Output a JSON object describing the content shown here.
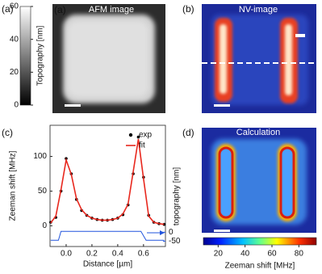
{
  "panels": {
    "a": {
      "label": "(a)",
      "inner_label": "(a)",
      "title": "AFM image"
    },
    "b": {
      "label": "(b)",
      "title": "NV-image"
    },
    "c": {
      "label": "(c)"
    },
    "d": {
      "label": "(d)",
      "title": "Calculation"
    }
  },
  "chart_data": [
    {
      "type": "colorbar",
      "orientation": "vertical",
      "colormap": "gray",
      "axis_label": "Topography [nm]",
      "ylim": [
        0,
        60
      ],
      "yticks": [
        0,
        20,
        40,
        60
      ]
    },
    {
      "type": "line",
      "xlabel": "Distance [µm]",
      "ylabel": "Zeeman shift [MHz]",
      "y2label": "topography [nm]",
      "x": [
        -0.12,
        -0.08,
        -0.04,
        0.0,
        0.04,
        0.08,
        0.12,
        0.16,
        0.2,
        0.24,
        0.28,
        0.32,
        0.36,
        0.4,
        0.44,
        0.48,
        0.52,
        0.56,
        0.6,
        0.64,
        0.68,
        0.72,
        0.76
      ],
      "xlim": [
        -0.125,
        0.77
      ],
      "xticks": [
        {
          "value": 0,
          "label": "0.0"
        },
        0.2,
        0.4,
        0.6
      ],
      "ylim": [
        -30,
        145
      ],
      "yticks": [
        0,
        50,
        100
      ],
      "y2lim": [
        -80,
        600
      ],
      "y2ticks": [
        0,
        -50
      ],
      "series": [
        {
          "name": "exp",
          "color": "#000000",
          "style": "markers",
          "values": [
            5,
            12,
            50,
            97,
            75,
            38,
            22,
            15,
            11,
            9,
            8,
            8,
            9,
            11,
            16,
            30,
            75,
            128,
            70,
            15,
            5,
            3,
            2
          ]
        },
        {
          "name": "fit",
          "color": "#e8281e",
          "style": "line",
          "values": [
            4,
            14,
            52,
            95,
            74,
            39,
            23,
            15,
            11,
            9,
            8,
            8,
            9,
            11,
            17,
            31,
            78,
            125,
            68,
            14,
            5,
            3,
            2
          ]
        },
        {
          "color": "#2255dd",
          "style": "line",
          "axis": "y2",
          "x": [
            -0.12,
            -0.06,
            -0.04,
            0.58,
            0.62,
            0.76
          ],
          "values": [
            -45,
            -45,
            5,
            5,
            -45,
            -45
          ]
        }
      ]
    },
    {
      "type": "colorbar",
      "orientation": "horizontal",
      "colormap": "jet",
      "axis_label": "Zeeman shift [MHz]",
      "xlim": [
        9,
        93
      ],
      "xticks": [
        20,
        40,
        60,
        80
      ]
    }
  ]
}
